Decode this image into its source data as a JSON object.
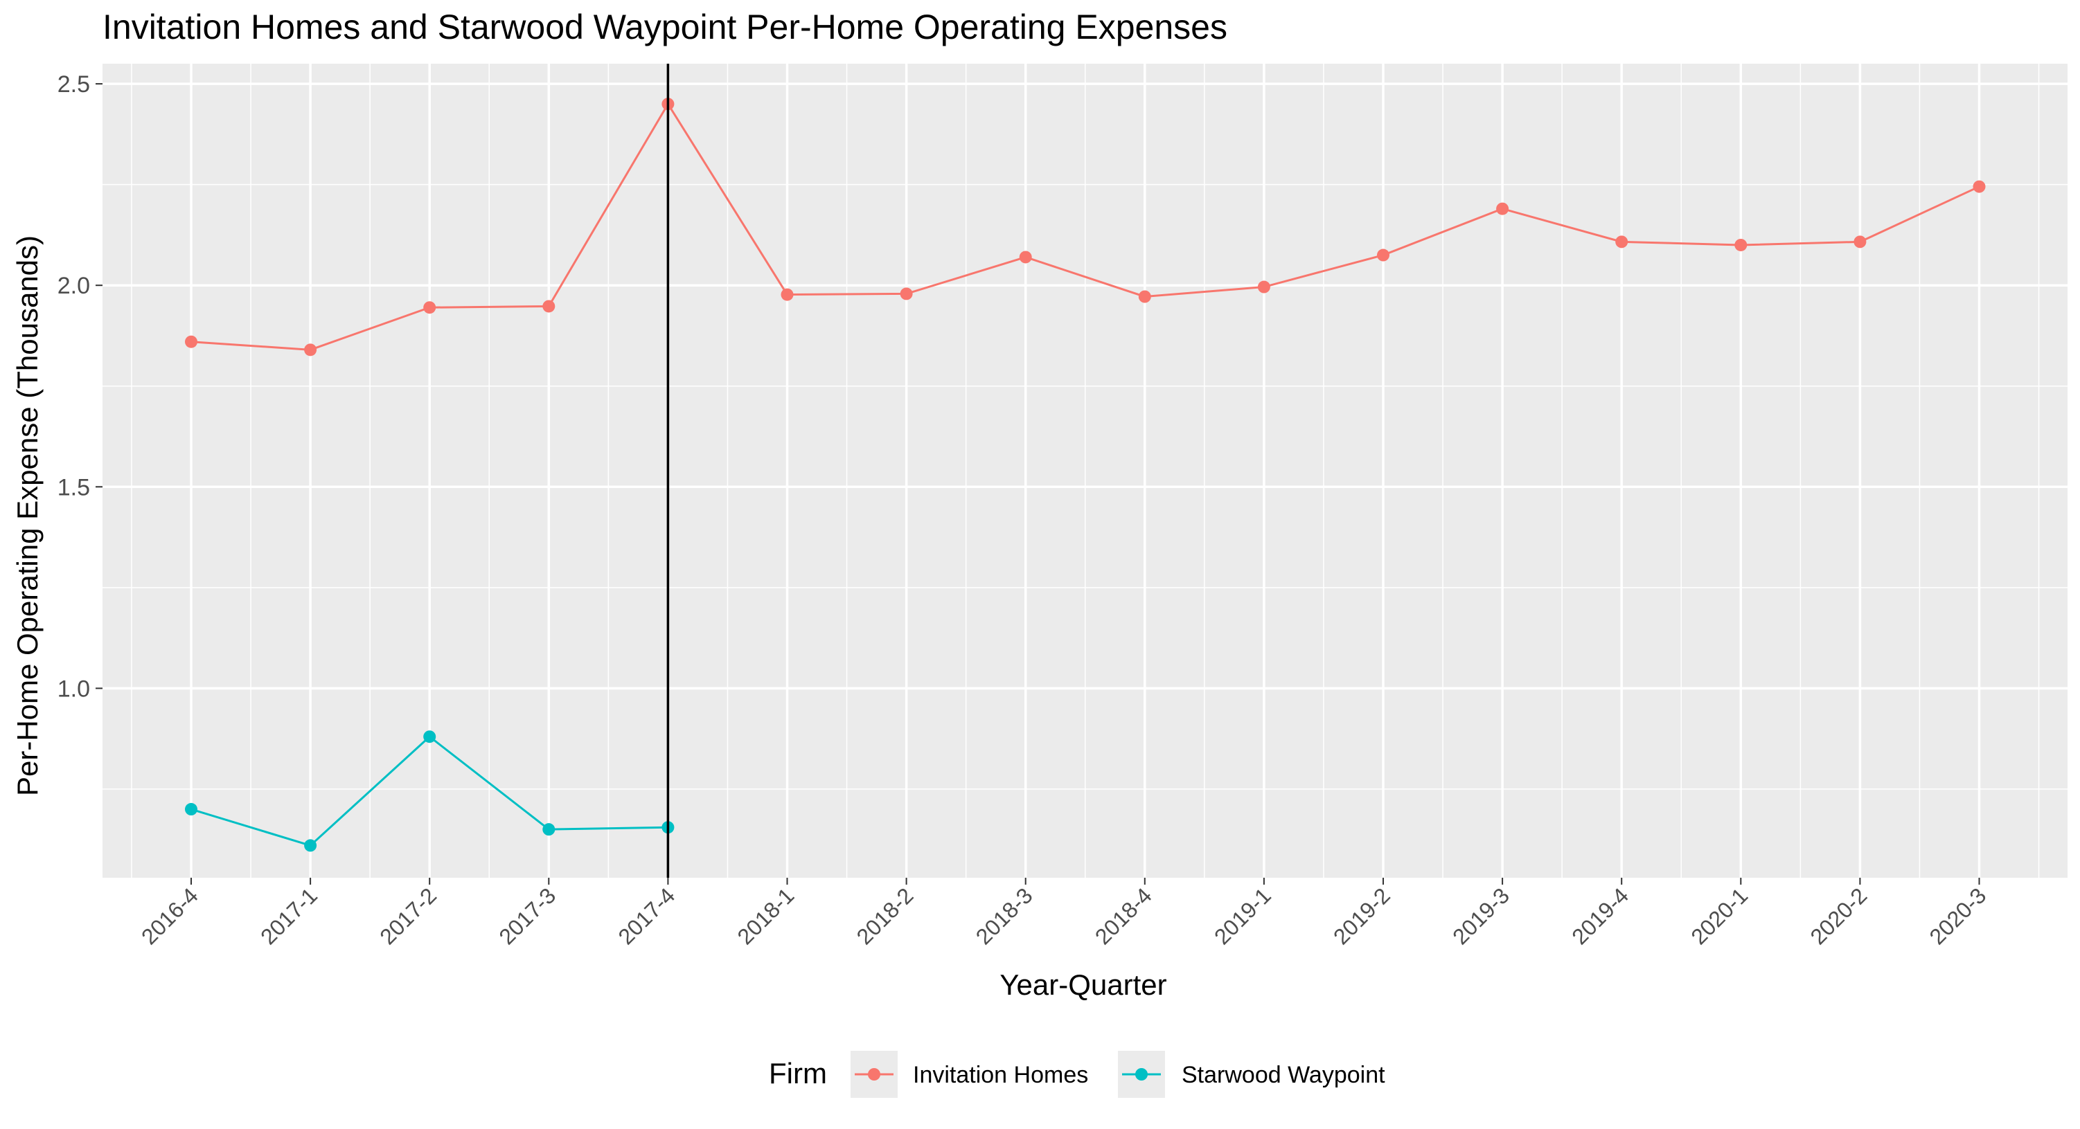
{
  "chart_data": {
    "type": "line",
    "title": "Invitation Homes and Starwood Waypoint Per-Home Operating Expenses",
    "xlabel": "Year-Quarter",
    "ylabel": "Per-Home Operating Expense (Thousands)",
    "categories": [
      "2016-4",
      "2017-1",
      "2017-2",
      "2017-3",
      "2017-4",
      "2018-1",
      "2018-2",
      "2018-3",
      "2018-4",
      "2019-1",
      "2019-2",
      "2019-3",
      "2019-4",
      "2020-1",
      "2020-2",
      "2020-3"
    ],
    "y_ticks": [
      1.0,
      1.5,
      2.0,
      2.5
    ],
    "y_tick_labels": [
      "1.0",
      "1.5",
      "2.0",
      "2.5"
    ],
    "ylim": [
      0.53,
      2.55
    ],
    "grid": true,
    "vertical_marker_at": "2017-4",
    "legend": {
      "title": "Firm",
      "position": "bottom"
    },
    "series": [
      {
        "name": "Invitation Homes",
        "color": "#F8766D",
        "values": [
          1.86,
          1.84,
          1.945,
          1.948,
          2.45,
          1.977,
          1.979,
          2.07,
          1.972,
          1.996,
          2.075,
          2.19,
          2.108,
          2.1,
          2.108,
          2.245
        ]
      },
      {
        "name": "Starwood Waypoint",
        "color": "#00BFC4",
        "values": [
          0.7,
          0.61,
          0.88,
          0.65,
          0.655,
          null,
          null,
          null,
          null,
          null,
          null,
          null,
          null,
          null,
          null,
          null
        ]
      }
    ]
  },
  "colors": {
    "panel_background": "#EBEBEB",
    "grid": "#FFFFFF",
    "marker_line": "#000000"
  }
}
